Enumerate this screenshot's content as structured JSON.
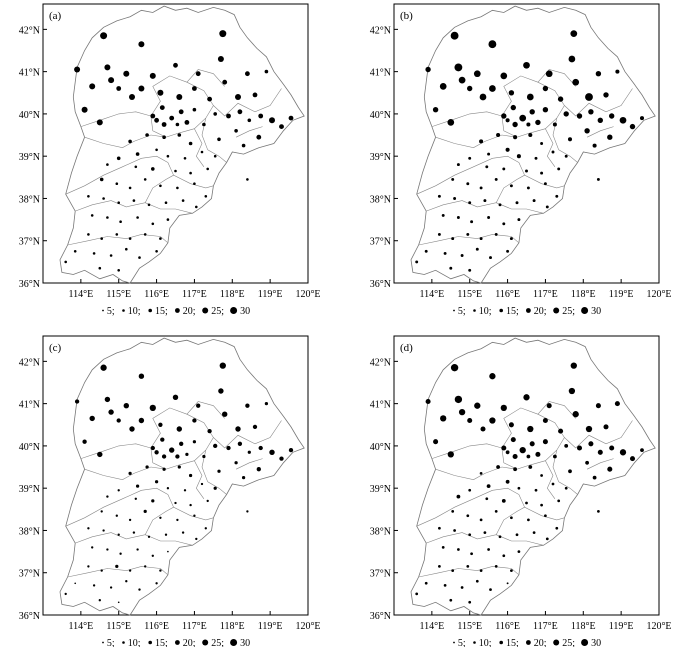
{
  "figure": {
    "panels": [
      {
        "label": "(a)",
        "scale": 1.0
      },
      {
        "label": "(b)",
        "scale": 1.12
      },
      {
        "label": "(c)",
        "scale": 0.9
      },
      {
        "label": "(d)",
        "scale": 1.05
      }
    ],
    "x_ticks": [
      "114°E",
      "115°E",
      "116°E",
      "117°E",
      "118°E",
      "119°E",
      "120°E"
    ],
    "y_ticks": [
      "36°N",
      "37°N",
      "38°N",
      "39°N",
      "40°N",
      "41°N",
      "42°N"
    ],
    "legend": [
      {
        "value": 5,
        "label": "5"
      },
      {
        "value": 10,
        "label": "10"
      },
      {
        "value": 15,
        "label": "15"
      },
      {
        "value": 20,
        "label": "20"
      },
      {
        "value": 25,
        "label": "25"
      },
      {
        "value": 30,
        "label": "30"
      }
    ],
    "legend_separator": ";"
  },
  "stations": [
    {
      "lon": 114.6,
      "lat": 41.85,
      "v": 28
    },
    {
      "lon": 115.6,
      "lat": 41.65,
      "v": 25
    },
    {
      "lon": 117.75,
      "lat": 41.9,
      "v": 26
    },
    {
      "lon": 113.9,
      "lat": 41.05,
      "v": 20
    },
    {
      "lon": 114.7,
      "lat": 41.1,
      "v": 26
    },
    {
      "lon": 115.2,
      "lat": 40.95,
      "v": 24
    },
    {
      "lon": 115.9,
      "lat": 40.9,
      "v": 25
    },
    {
      "lon": 116.5,
      "lat": 41.15,
      "v": 22
    },
    {
      "lon": 117.1,
      "lat": 40.95,
      "v": 20
    },
    {
      "lon": 117.7,
      "lat": 41.3,
      "v": 22
    },
    {
      "lon": 118.4,
      "lat": 40.95,
      "v": 18
    },
    {
      "lon": 118.9,
      "lat": 41.0,
      "v": 15
    },
    {
      "lon": 114.3,
      "lat": 40.65,
      "v": 24
    },
    {
      "lon": 114.8,
      "lat": 40.8,
      "v": 22
    },
    {
      "lon": 115.0,
      "lat": 40.6,
      "v": 20
    },
    {
      "lon": 115.35,
      "lat": 40.4,
      "v": 22
    },
    {
      "lon": 115.6,
      "lat": 40.6,
      "v": 23
    },
    {
      "lon": 116.1,
      "lat": 40.5,
      "v": 20
    },
    {
      "lon": 116.6,
      "lat": 40.4,
      "v": 22
    },
    {
      "lon": 117.0,
      "lat": 40.6,
      "v": 20
    },
    {
      "lon": 117.4,
      "lat": 40.35,
      "v": 18
    },
    {
      "lon": 117.8,
      "lat": 40.75,
      "v": 22
    },
    {
      "lon": 118.15,
      "lat": 40.4,
      "v": 25
    },
    {
      "lon": 118.6,
      "lat": 40.45,
      "v": 20
    },
    {
      "lon": 114.1,
      "lat": 40.1,
      "v": 20
    },
    {
      "lon": 114.5,
      "lat": 39.8,
      "v": 22
    },
    {
      "lon": 116.15,
      "lat": 40.15,
      "v": 20
    },
    {
      "lon": 115.9,
      "lat": 39.95,
      "v": 18
    },
    {
      "lon": 116.4,
      "lat": 39.9,
      "v": 22
    },
    {
      "lon": 116.2,
      "lat": 39.75,
      "v": 18
    },
    {
      "lon": 116.65,
      "lat": 40.05,
      "v": 18
    },
    {
      "lon": 116.8,
      "lat": 39.8,
      "v": 16
    },
    {
      "lon": 117.0,
      "lat": 40.1,
      "v": 16
    },
    {
      "lon": 116.0,
      "lat": 39.85,
      "v": 16
    },
    {
      "lon": 116.55,
      "lat": 39.75,
      "v": 15
    },
    {
      "lon": 117.25,
      "lat": 39.75,
      "v": 14
    },
    {
      "lon": 117.55,
      "lat": 40.0,
      "v": 16
    },
    {
      "lon": 117.9,
      "lat": 39.95,
      "v": 20
    },
    {
      "lon": 118.2,
      "lat": 40.05,
      "v": 18
    },
    {
      "lon": 118.45,
      "lat": 39.85,
      "v": 16
    },
    {
      "lon": 118.75,
      "lat": 39.95,
      "v": 18
    },
    {
      "lon": 119.05,
      "lat": 39.85,
      "v": 22
    },
    {
      "lon": 119.3,
      "lat": 39.7,
      "v": 20
    },
    {
      "lon": 118.1,
      "lat": 39.6,
      "v": 15
    },
    {
      "lon": 118.7,
      "lat": 39.45,
      "v": 18
    },
    {
      "lon": 118.3,
      "lat": 39.25,
      "v": 14
    },
    {
      "lon": 117.65,
      "lat": 39.4,
      "v": 12
    },
    {
      "lon": 117.2,
      "lat": 39.1,
      "v": 10
    },
    {
      "lon": 117.55,
      "lat": 39.0,
      "v": 10
    },
    {
      "lon": 118.4,
      "lat": 38.45,
      "v": 8
    },
    {
      "lon": 115.3,
      "lat": 39.35,
      "v": 12
    },
    {
      "lon": 115.75,
      "lat": 39.5,
      "v": 14
    },
    {
      "lon": 116.2,
      "lat": 39.45,
      "v": 14
    },
    {
      "lon": 116.6,
      "lat": 39.5,
      "v": 12
    },
    {
      "lon": 116.9,
      "lat": 39.3,
      "v": 11
    },
    {
      "lon": 115.5,
      "lat": 39.05,
      "v": 11
    },
    {
      "lon": 116.0,
      "lat": 39.15,
      "v": 12
    },
    {
      "lon": 116.3,
      "lat": 39.0,
      "v": 10
    },
    {
      "lon": 116.75,
      "lat": 38.95,
      "v": 10
    },
    {
      "lon": 115.0,
      "lat": 38.95,
      "v": 10
    },
    {
      "lon": 114.7,
      "lat": 38.8,
      "v": 10
    },
    {
      "lon": 115.45,
      "lat": 38.75,
      "v": 9
    },
    {
      "lon": 115.9,
      "lat": 38.7,
      "v": 11
    },
    {
      "lon": 116.5,
      "lat": 38.65,
      "v": 9
    },
    {
      "lon": 116.9,
      "lat": 38.6,
      "v": 9
    },
    {
      "lon": 117.35,
      "lat": 38.7,
      "v": 9
    },
    {
      "lon": 114.55,
      "lat": 38.45,
      "v": 10
    },
    {
      "lon": 114.95,
      "lat": 38.35,
      "v": 8
    },
    {
      "lon": 115.3,
      "lat": 38.25,
      "v": 9
    },
    {
      "lon": 115.7,
      "lat": 38.45,
      "v": 10
    },
    {
      "lon": 116.1,
      "lat": 38.3,
      "v": 9
    },
    {
      "lon": 116.55,
      "lat": 38.25,
      "v": 8
    },
    {
      "lon": 117.0,
      "lat": 38.35,
      "v": 9
    },
    {
      "lon": 117.3,
      "lat": 38.05,
      "v": 8
    },
    {
      "lon": 114.2,
      "lat": 38.05,
      "v": 9
    },
    {
      "lon": 114.6,
      "lat": 38.0,
      "v": 9
    },
    {
      "lon": 115.0,
      "lat": 37.9,
      "v": 8
    },
    {
      "lon": 115.4,
      "lat": 37.95,
      "v": 9
    },
    {
      "lon": 115.8,
      "lat": 37.85,
      "v": 9
    },
    {
      "lon": 116.25,
      "lat": 37.9,
      "v": 8
    },
    {
      "lon": 116.7,
      "lat": 37.95,
      "v": 8
    },
    {
      "lon": 117.05,
      "lat": 37.8,
      "v": 7
    },
    {
      "lon": 114.3,
      "lat": 37.6,
      "v": 8
    },
    {
      "lon": 114.7,
      "lat": 37.55,
      "v": 9
    },
    {
      "lon": 115.05,
      "lat": 37.45,
      "v": 8
    },
    {
      "lon": 115.5,
      "lat": 37.55,
      "v": 9
    },
    {
      "lon": 115.9,
      "lat": 37.4,
      "v": 8
    },
    {
      "lon": 116.3,
      "lat": 37.5,
      "v": 7
    },
    {
      "lon": 114.2,
      "lat": 37.15,
      "v": 8
    },
    {
      "lon": 114.55,
      "lat": 37.05,
      "v": 9
    },
    {
      "lon": 114.95,
      "lat": 37.15,
      "v": 10
    },
    {
      "lon": 115.3,
      "lat": 37.05,
      "v": 9
    },
    {
      "lon": 115.7,
      "lat": 37.15,
      "v": 8
    },
    {
      "lon": 116.1,
      "lat": 37.05,
      "v": 7
    },
    {
      "lon": 113.85,
      "lat": 36.75,
      "v": 7
    },
    {
      "lon": 114.35,
      "lat": 36.7,
      "v": 8
    },
    {
      "lon": 114.8,
      "lat": 36.65,
      "v": 9
    },
    {
      "lon": 115.2,
      "lat": 36.8,
      "v": 8
    },
    {
      "lon": 115.55,
      "lat": 36.6,
      "v": 8
    },
    {
      "lon": 116.0,
      "lat": 36.75,
      "v": 7
    },
    {
      "lon": 114.5,
      "lat": 36.35,
      "v": 8
    },
    {
      "lon": 115.0,
      "lat": 36.3,
      "v": 7
    },
    {
      "lon": 113.6,
      "lat": 36.5,
      "v": 7
    },
    {
      "lon": 119.55,
      "lat": 39.9,
      "v": 16
    }
  ]
}
